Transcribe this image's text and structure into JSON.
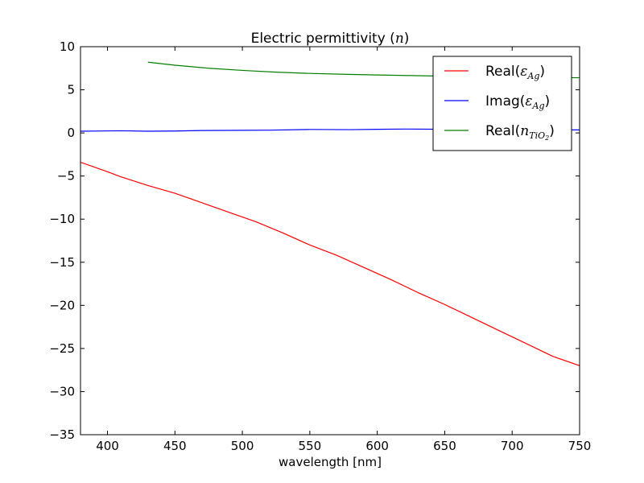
{
  "chart_data": {
    "type": "line",
    "title": {
      "prefix": "Electric permittivity (",
      "math": "n",
      "suffix": ")"
    },
    "xlabel": "wavelength [nm]",
    "ylabel": "",
    "xlim": [
      380,
      750
    ],
    "ylim": [
      -35,
      10
    ],
    "xticks": [
      400,
      450,
      500,
      550,
      600,
      650,
      700,
      750
    ],
    "yticks": [
      10,
      5,
      0,
      -5,
      -10,
      -15,
      -20,
      -25,
      -30,
      -35
    ],
    "grid": false,
    "legend_position": "top-right",
    "series": [
      {
        "name": "Real(ε_Ag)",
        "legend": {
          "prefix": "Real(",
          "math": "ε",
          "sub": "Ag",
          "suffix": ")"
        },
        "color": "#ff0000",
        "x": [
          380,
          400,
          410,
          430,
          450,
          470,
          490,
          510,
          530,
          550,
          570,
          590,
          610,
          630,
          650,
          670,
          690,
          710,
          730,
          750
        ],
        "y": [
          -3.4,
          -4.5,
          -5.1,
          -6.1,
          -7.0,
          -8.1,
          -9.2,
          -10.3,
          -11.6,
          -13.0,
          -14.2,
          -15.6,
          -17.0,
          -18.5,
          -19.9,
          -21.4,
          -22.9,
          -24.4,
          -25.9,
          -27.0
        ]
      },
      {
        "name": "Imag(ε_Ag)",
        "legend": {
          "prefix": "Imag(",
          "math": "ε",
          "sub": "Ag",
          "suffix": ")"
        },
        "color": "#0000ff",
        "x": [
          380,
          410,
          430,
          450,
          470,
          500,
          520,
          550,
          580,
          600,
          620,
          650,
          700,
          750
        ],
        "y": [
          0.2,
          0.25,
          0.2,
          0.22,
          0.28,
          0.3,
          0.32,
          0.4,
          0.38,
          0.42,
          0.45,
          0.42,
          0.38,
          0.35
        ]
      },
      {
        "name": "Real(n_TiO2)",
        "legend": {
          "prefix": "Real(",
          "math": "n",
          "sub": "TiO",
          "sub2": "2",
          "suffix": ")"
        },
        "color": "#008000",
        "x": [
          430,
          450,
          475,
          500,
          525,
          550,
          575,
          600,
          625,
          650,
          675,
          700,
          725,
          750
        ],
        "y": [
          8.2,
          7.85,
          7.5,
          7.25,
          7.05,
          6.9,
          6.8,
          6.72,
          6.65,
          6.58,
          6.52,
          6.47,
          6.43,
          6.4
        ]
      }
    ]
  }
}
